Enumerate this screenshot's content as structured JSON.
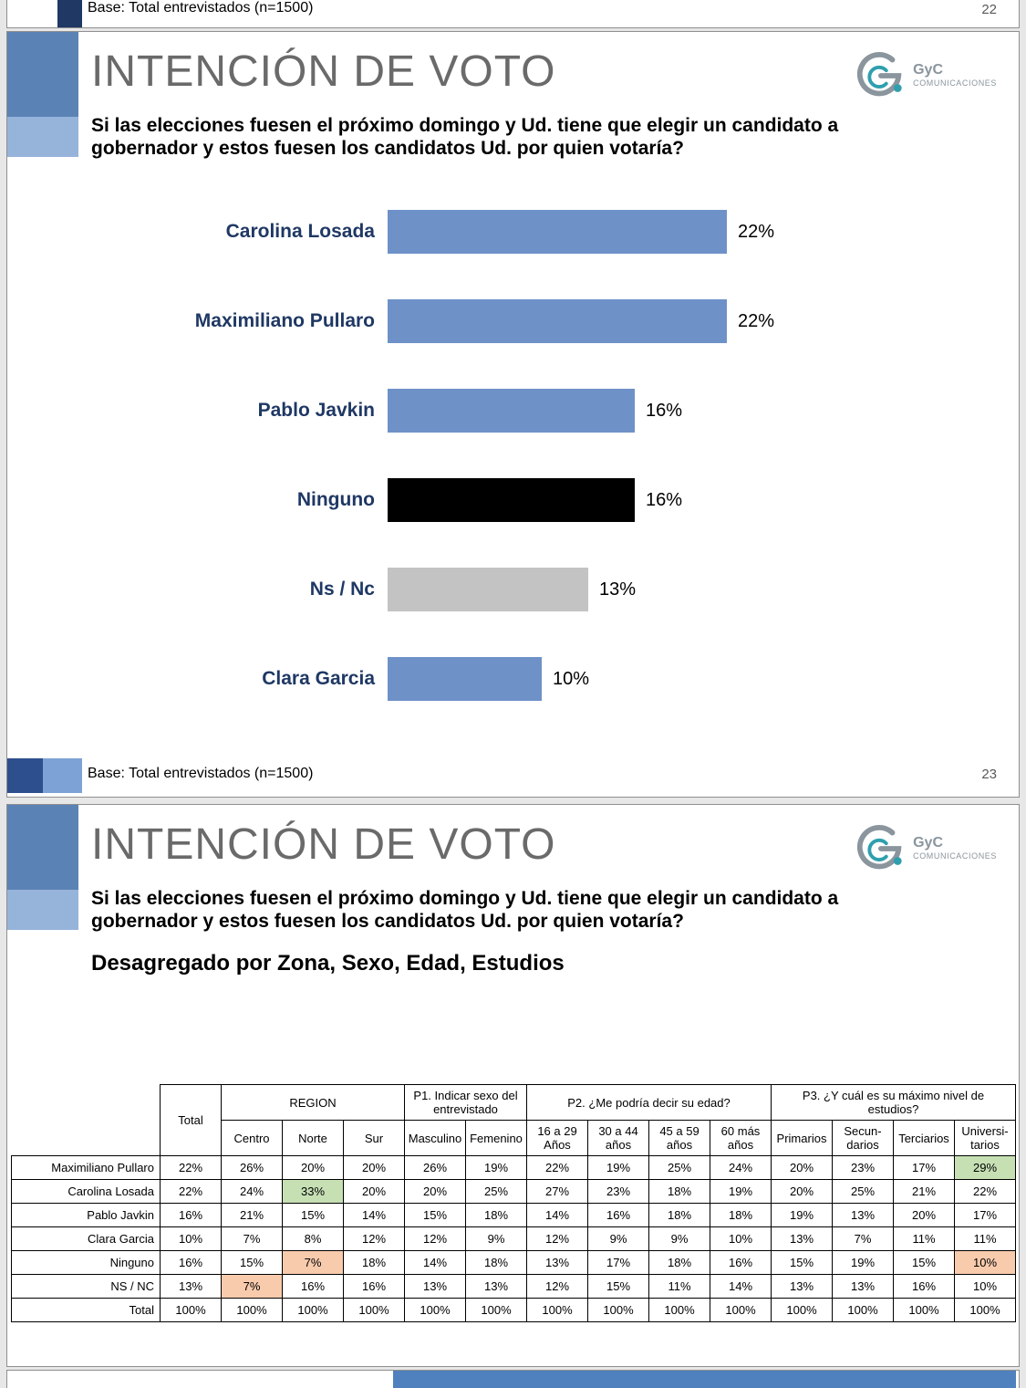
{
  "shared": {
    "title": "INTENCIÓN DE VOTO",
    "question_line1": "Si las elecciones fuesen el próximo domingo y Ud. tiene que elegir un candidato a",
    "question_line2": "gobernador y estos fuesen los candidatos Ud. por quien votaría?",
    "base_note": "Base: Total entrevistados (n=1500)",
    "logo_brand": "GyC",
    "logo_sub": "COMUNICACIONES"
  },
  "pages": {
    "prev_page_number": "22",
    "chart_page_number": "23"
  },
  "slide2_heading": "Desagregado por Zona, Sexo, Edad, Estudios",
  "chart_data": [
    {
      "type": "bar",
      "orientation": "horizontal",
      "title": "INTENCIÓN DE VOTO",
      "categories": [
        "Carolina Losada",
        "Maximiliano Pullaro",
        "Pablo Javkin",
        "Ninguno",
        "Ns / Nc",
        "Clara Garcia"
      ],
      "values": [
        22,
        22,
        16,
        16,
        13,
        10
      ],
      "value_labels": [
        "22%",
        "22%",
        "16%",
        "16%",
        "13%",
        "10%"
      ],
      "bar_colors": [
        "#6e91c8",
        "#6e91c8",
        "#6e91c8",
        "#000000",
        "#c3c3c3",
        "#6e91c8"
      ],
      "xlim": [
        0,
        26
      ],
      "grid": false,
      "legend": false
    },
    {
      "type": "table",
      "title": "Desagregado por Zona, Sexo, Edad, Estudios",
      "total_col_label": "Total",
      "groups": [
        {
          "label": "REGION",
          "cols": [
            "Centro",
            "Norte",
            "Sur"
          ]
        },
        {
          "label": "P1. Indicar sexo del\nentrevistado",
          "cols": [
            "Masculino",
            "Femenino"
          ]
        },
        {
          "label": "P2. ¿Me podría decir su edad?",
          "cols": [
            "16 a 29\nAños",
            "30 a 44\naños",
            "45 a 59\naños",
            "60 más\naños"
          ]
        },
        {
          "label": "P3. ¿Y cuál es su máximo nivel de\nestudios?",
          "cols": [
            "Primarios",
            "Secun-\ndarios",
            "Terciarios",
            "Universi-\ntarios"
          ]
        }
      ],
      "rows": [
        {
          "label": "Maximiliano Pullaro",
          "values": [
            "22%",
            "26%",
            "20%",
            "20%",
            "26%",
            "19%",
            "22%",
            "19%",
            "25%",
            "24%",
            "20%",
            "23%",
            "17%",
            "29%"
          ],
          "highlights": {
            "13": "green"
          }
        },
        {
          "label": "Carolina Losada",
          "values": [
            "22%",
            "24%",
            "33%",
            "20%",
            "20%",
            "25%",
            "27%",
            "23%",
            "18%",
            "19%",
            "20%",
            "25%",
            "21%",
            "22%"
          ],
          "highlights": {
            "2": "green"
          }
        },
        {
          "label": "Pablo Javkin",
          "values": [
            "16%",
            "21%",
            "15%",
            "14%",
            "15%",
            "18%",
            "14%",
            "16%",
            "18%",
            "18%",
            "19%",
            "13%",
            "20%",
            "17%"
          ],
          "highlights": {}
        },
        {
          "label": "Clara Garcia",
          "values": [
            "10%",
            "7%",
            "8%",
            "12%",
            "12%",
            "9%",
            "12%",
            "9%",
            "9%",
            "10%",
            "13%",
            "7%",
            "11%",
            "11%"
          ],
          "highlights": {}
        },
        {
          "label": "Ninguno",
          "values": [
            "16%",
            "15%",
            "7%",
            "18%",
            "14%",
            "18%",
            "13%",
            "17%",
            "18%",
            "16%",
            "15%",
            "19%",
            "15%",
            "10%"
          ],
          "highlights": {
            "2": "orange",
            "13": "orange"
          }
        },
        {
          "label": "NS / NC",
          "values": [
            "13%",
            "7%",
            "16%",
            "16%",
            "13%",
            "13%",
            "12%",
            "15%",
            "11%",
            "14%",
            "13%",
            "13%",
            "16%",
            "10%"
          ],
          "highlights": {
            "1": "orange"
          }
        },
        {
          "label": "Total",
          "values": [
            "100%",
            "100%",
            "100%",
            "100%",
            "100%",
            "100%",
            "100%",
            "100%",
            "100%",
            "100%",
            "100%",
            "100%",
            "100%",
            "100%"
          ],
          "highlights": {}
        }
      ]
    }
  ],
  "colors": {
    "bar_blue": "#6e91c8",
    "highlight_green": "#c6e0b4",
    "highlight_orange": "#f8cbad",
    "accent_dark_blue": "#5b82b5",
    "accent_light_blue": "#96b3da",
    "footer_accent_dark": "#2d4f8e",
    "footer_accent_light": "#7da3d6",
    "navy_square": "#1f3864",
    "peek_bar_blue": "#4e81bd",
    "title_gray": "#6a6a6a",
    "logo_teal": "#2f9fae",
    "logo_gray": "#8a959d"
  }
}
